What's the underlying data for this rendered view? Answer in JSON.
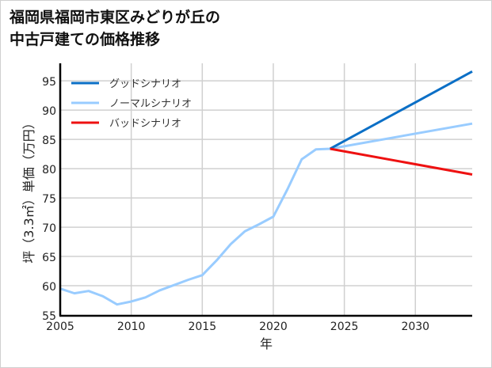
{
  "title_lines": [
    "福岡県福岡市東区みどりが丘の",
    "中古戸建ての価格推移"
  ],
  "chart_data": {
    "type": "line",
    "title": "福岡県福岡市東区みどりが丘の中古戸建ての価格推移",
    "xlabel": "年",
    "ylabel": "坪（3.3㎡）単価（万円）",
    "xlim": [
      2005,
      2034
    ],
    "ylim": [
      55,
      98
    ],
    "xticks": [
      2005,
      2010,
      2015,
      2020,
      2025,
      2030
    ],
    "yticks": [
      55,
      60,
      65,
      70,
      75,
      80,
      85,
      90,
      95
    ],
    "grid": true,
    "legend_position": "upper left",
    "series": [
      {
        "name": "グッドシナリオ",
        "color": "#0b6fc6",
        "x": [
          2024,
          2034
        ],
        "values": [
          83.4,
          96.6
        ]
      },
      {
        "name": "ノーマルシナリオ",
        "color": "#99ccff",
        "x": [
          2005,
          2006,
          2007,
          2008,
          2009,
          2010,
          2011,
          2012,
          2013,
          2014,
          2015,
          2016,
          2017,
          2018,
          2019,
          2020,
          2021,
          2022,
          2023,
          2024,
          2034
        ],
        "values": [
          59.5,
          58.7,
          59.1,
          58.2,
          56.8,
          57.3,
          58.0,
          59.2,
          60.1,
          61.0,
          61.8,
          64.3,
          67.1,
          69.3,
          70.5,
          71.8,
          76.5,
          81.6,
          83.3,
          83.4,
          87.7
        ]
      },
      {
        "name": "バッドシナリオ",
        "color": "#ee1111",
        "x": [
          2024,
          2034
        ],
        "values": [
          83.4,
          79.0
        ]
      }
    ]
  }
}
